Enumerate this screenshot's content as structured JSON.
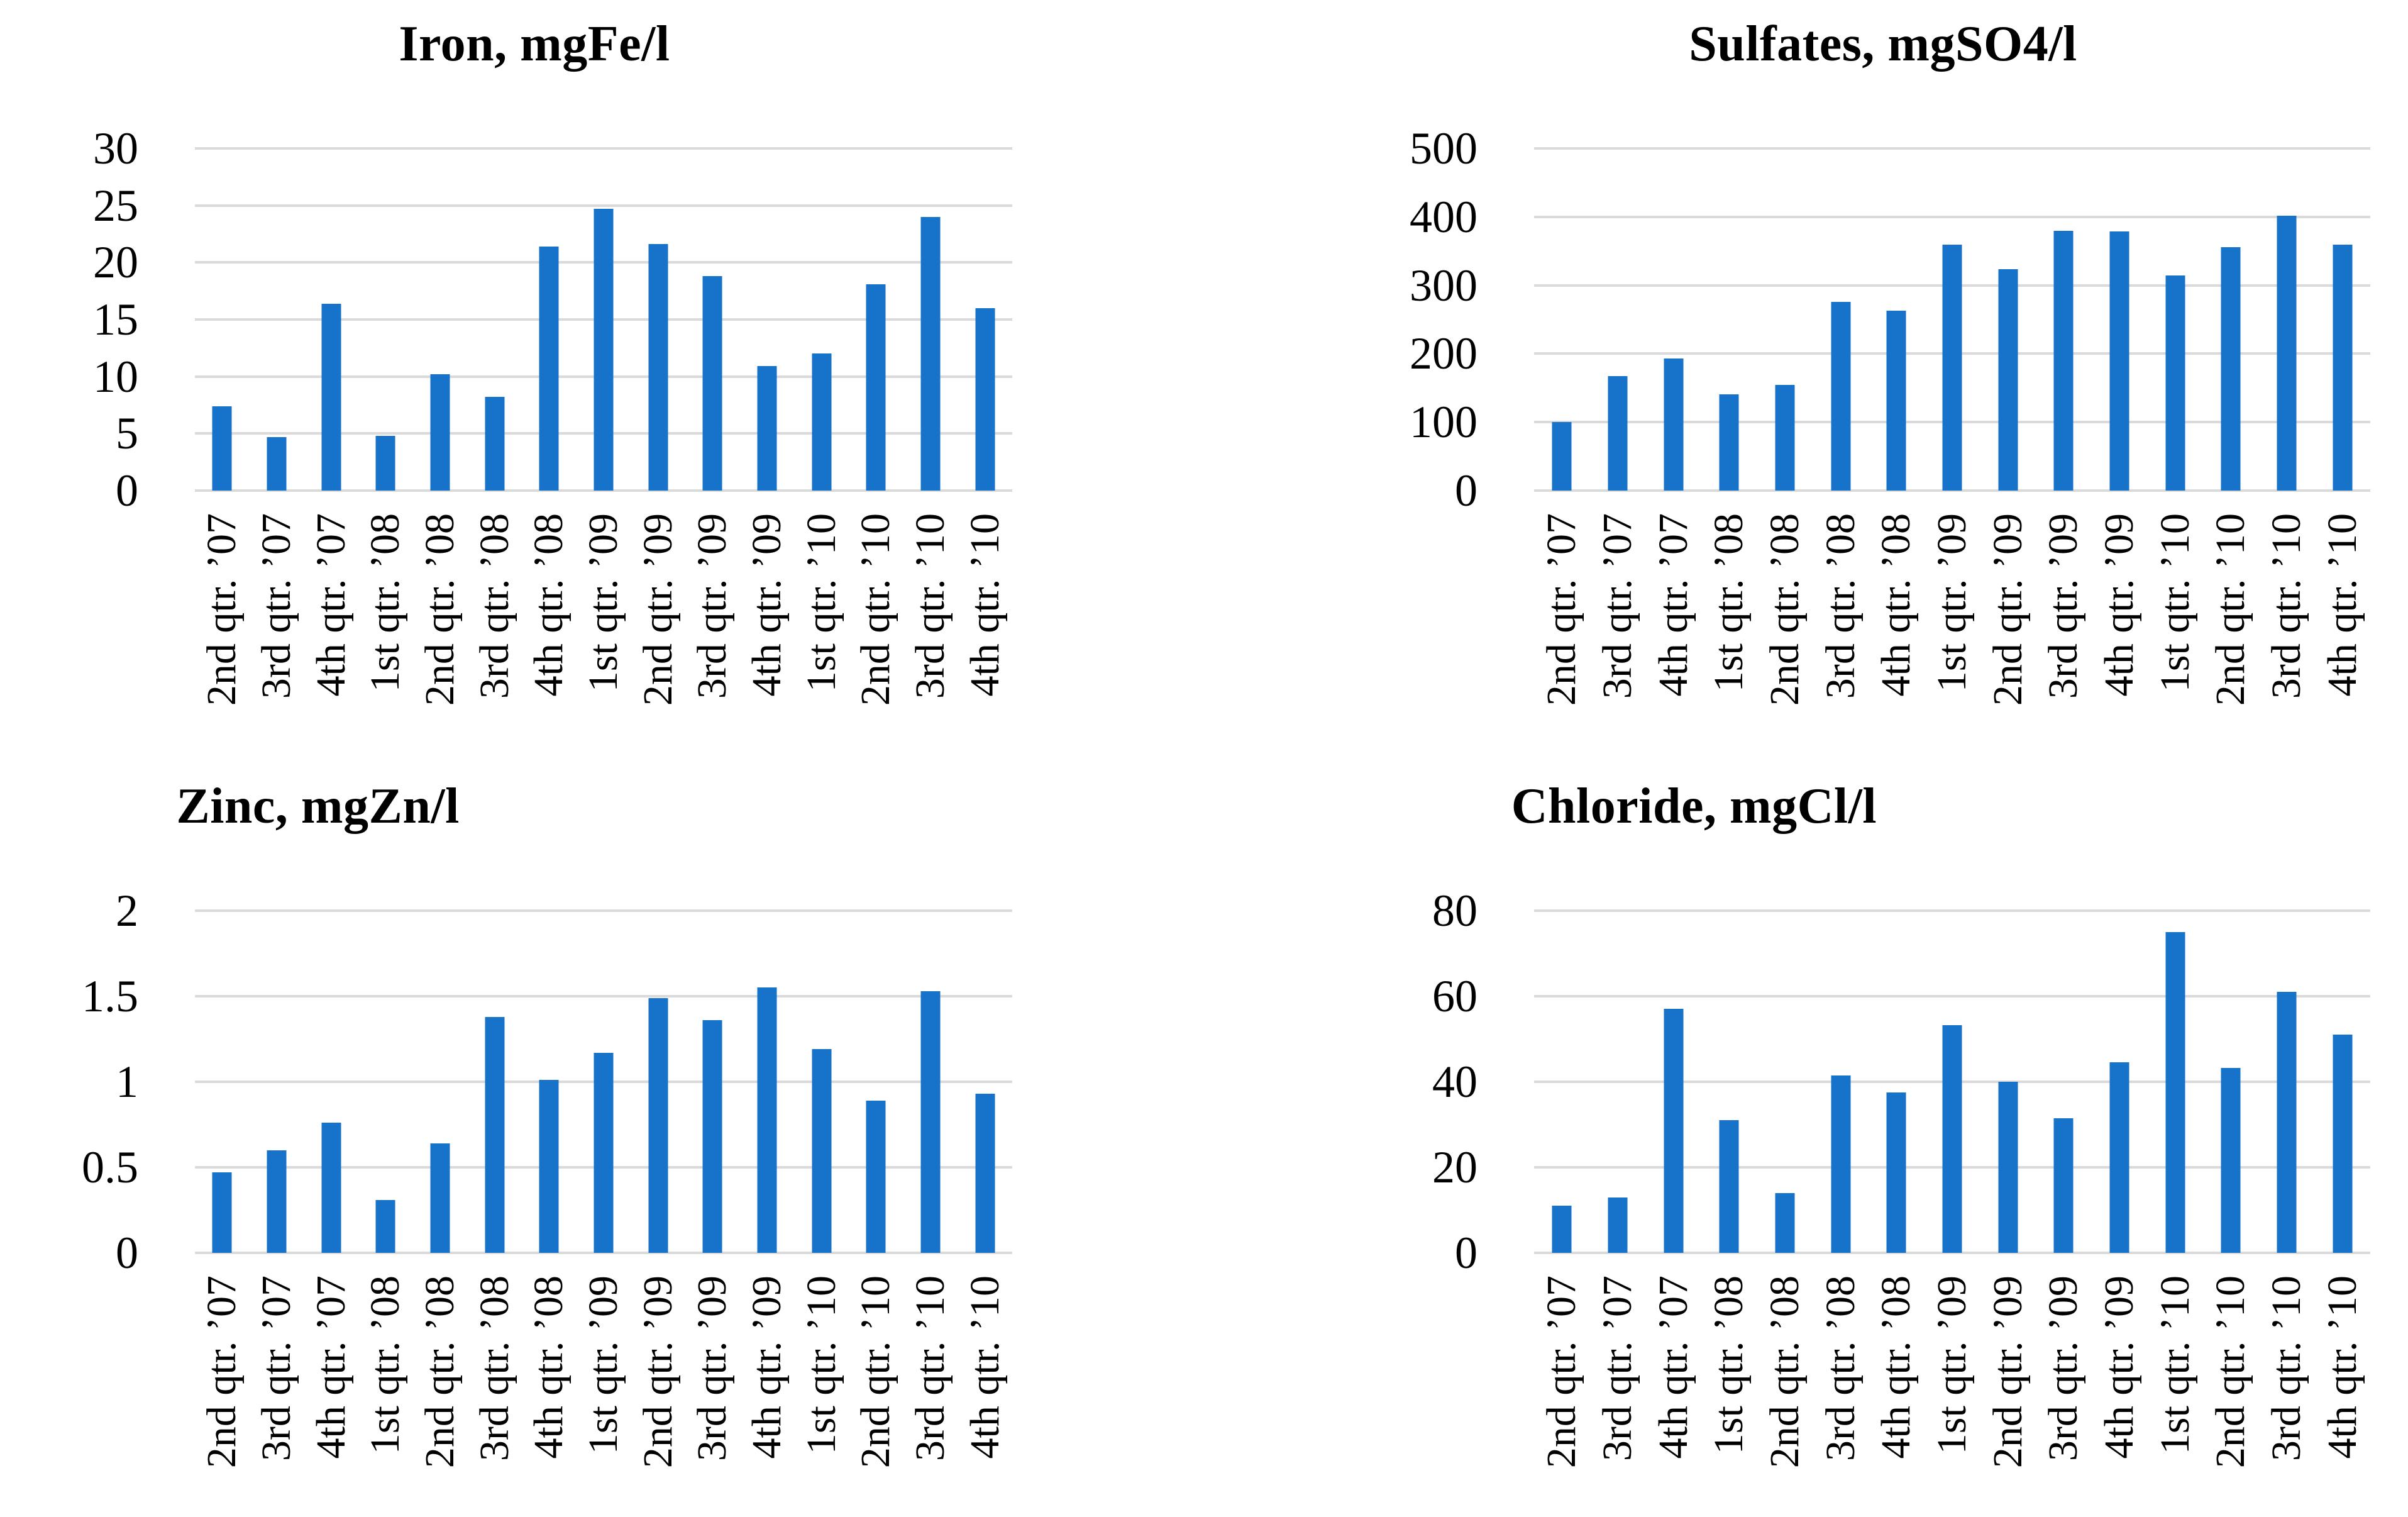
{
  "figure": {
    "background": "#FFFFFF"
  },
  "colors": {
    "bar": "#1772C9",
    "gridline": "#DADADA",
    "text": "#000000"
  },
  "chart_data": [
    {
      "type": "bar",
      "title": "Iron, mgFe/l",
      "categories": [
        "2nd qtr. ’07",
        "3rd qtr. ’07",
        "4th qtr. ’07",
        "1st qtr. ’08",
        "2nd qtr. ’08",
        "3rd qtr. ’08",
        "4th qtr. ’08",
        "1st qtr. ’09",
        "2nd qtr. ’09",
        "3rd qtr. ’09",
        "4th qtr. ’09",
        "1st qtr. ’10",
        "2nd qtr. ’10",
        "3rd qtr. ’10",
        "4th qtr. ’10"
      ],
      "values": [
        7.4,
        4.7,
        16.4,
        4.8,
        10.2,
        8.2,
        21.4,
        24.7,
        21.6,
        18.8,
        10.9,
        12.0,
        18.1,
        24.0,
        16.0
      ],
      "xlabel": "",
      "ylabel": "",
      "ylim": [
        0,
        30
      ],
      "yticks": [
        0,
        5,
        10,
        15,
        20,
        25,
        30
      ],
      "grid": "horizontal",
      "legend": "none",
      "bar_color": "#1772C9"
    },
    {
      "type": "bar",
      "title": "Sulfates, mgSO4/l",
      "categories": [
        "2nd qtr. ’07",
        "3rd qtr. ’07",
        "4th qtr. ’07",
        "1st qtr. ’08",
        "2nd qtr. ’08",
        "3rd qtr. ’08",
        "4th qtr. ’08",
        "1st qtr. ’09",
        "2nd qtr. ’09",
        "3rd qtr. ’09",
        "4th qtr. ’09",
        "1st qtr. ’10",
        "2nd qtr. ’10",
        "3rd qtr. ’10",
        "4th qtr. ’10"
      ],
      "values": [
        100,
        167,
        193,
        141,
        154,
        276,
        263,
        359,
        324,
        380,
        379,
        314,
        356,
        402,
        359
      ],
      "xlabel": "",
      "ylabel": "",
      "ylim": [
        0,
        500
      ],
      "yticks": [
        0,
        100,
        200,
        300,
        400,
        500
      ],
      "grid": "horizontal",
      "legend": "none",
      "bar_color": "#1772C9"
    },
    {
      "type": "bar",
      "title": "Zinc, mgZn/l",
      "categories": [
        "2nd qtr. ’07",
        "3rd qtr. ’07",
        "4th qtr. ’07",
        "1st qtr. ’08",
        "2nd qtr. ’08",
        "3rd qtr. ’08",
        "4th qtr. ’08",
        "1st qtr. ’09",
        "2nd qtr. ’09",
        "3rd qtr. ’09",
        "4th qtr. ’09",
        "1st qtr. ’10",
        "2nd qtr. ’10",
        "3rd qtr. ’10",
        "4th qtr. ’10"
      ],
      "values": [
        0.47,
        0.6,
        0.76,
        0.31,
        0.64,
        1.38,
        1.01,
        1.17,
        1.49,
        1.36,
        1.55,
        1.19,
        0.89,
        1.53,
        0.93
      ],
      "xlabel": "",
      "ylabel": "",
      "ylim": [
        0,
        2
      ],
      "yticks": [
        0,
        0.5,
        1,
        1.5,
        2
      ],
      "grid": "horizontal",
      "legend": "none",
      "bar_color": "#1772C9"
    },
    {
      "type": "bar",
      "title": "Chloride, mgCl/l",
      "categories": [
        "2nd qtr. ’07",
        "3rd qtr. ’07",
        "4th qtr. ’07",
        "1st qtr. ’08",
        "2nd qtr. ’08",
        "3rd qtr. ’08",
        "4th qtr. ’08",
        "1st qtr. ’09",
        "2nd qtr. ’09",
        "3rd qtr. ’09",
        "4th qtr. ’09",
        "1st qtr. ’10",
        "2nd qtr. ’10",
        "3rd qtr. ’10",
        "4th qtr. ’10"
      ],
      "values": [
        11,
        13,
        57,
        31,
        14,
        41.5,
        37.5,
        53.3,
        40,
        31.5,
        44.5,
        75,
        43.3,
        61,
        51
      ],
      "xlabel": "",
      "ylabel": "",
      "ylim": [
        0,
        80
      ],
      "yticks": [
        0,
        20,
        40,
        60,
        80
      ],
      "grid": "horizontal",
      "legend": "none",
      "bar_color": "#1772C9"
    }
  ]
}
